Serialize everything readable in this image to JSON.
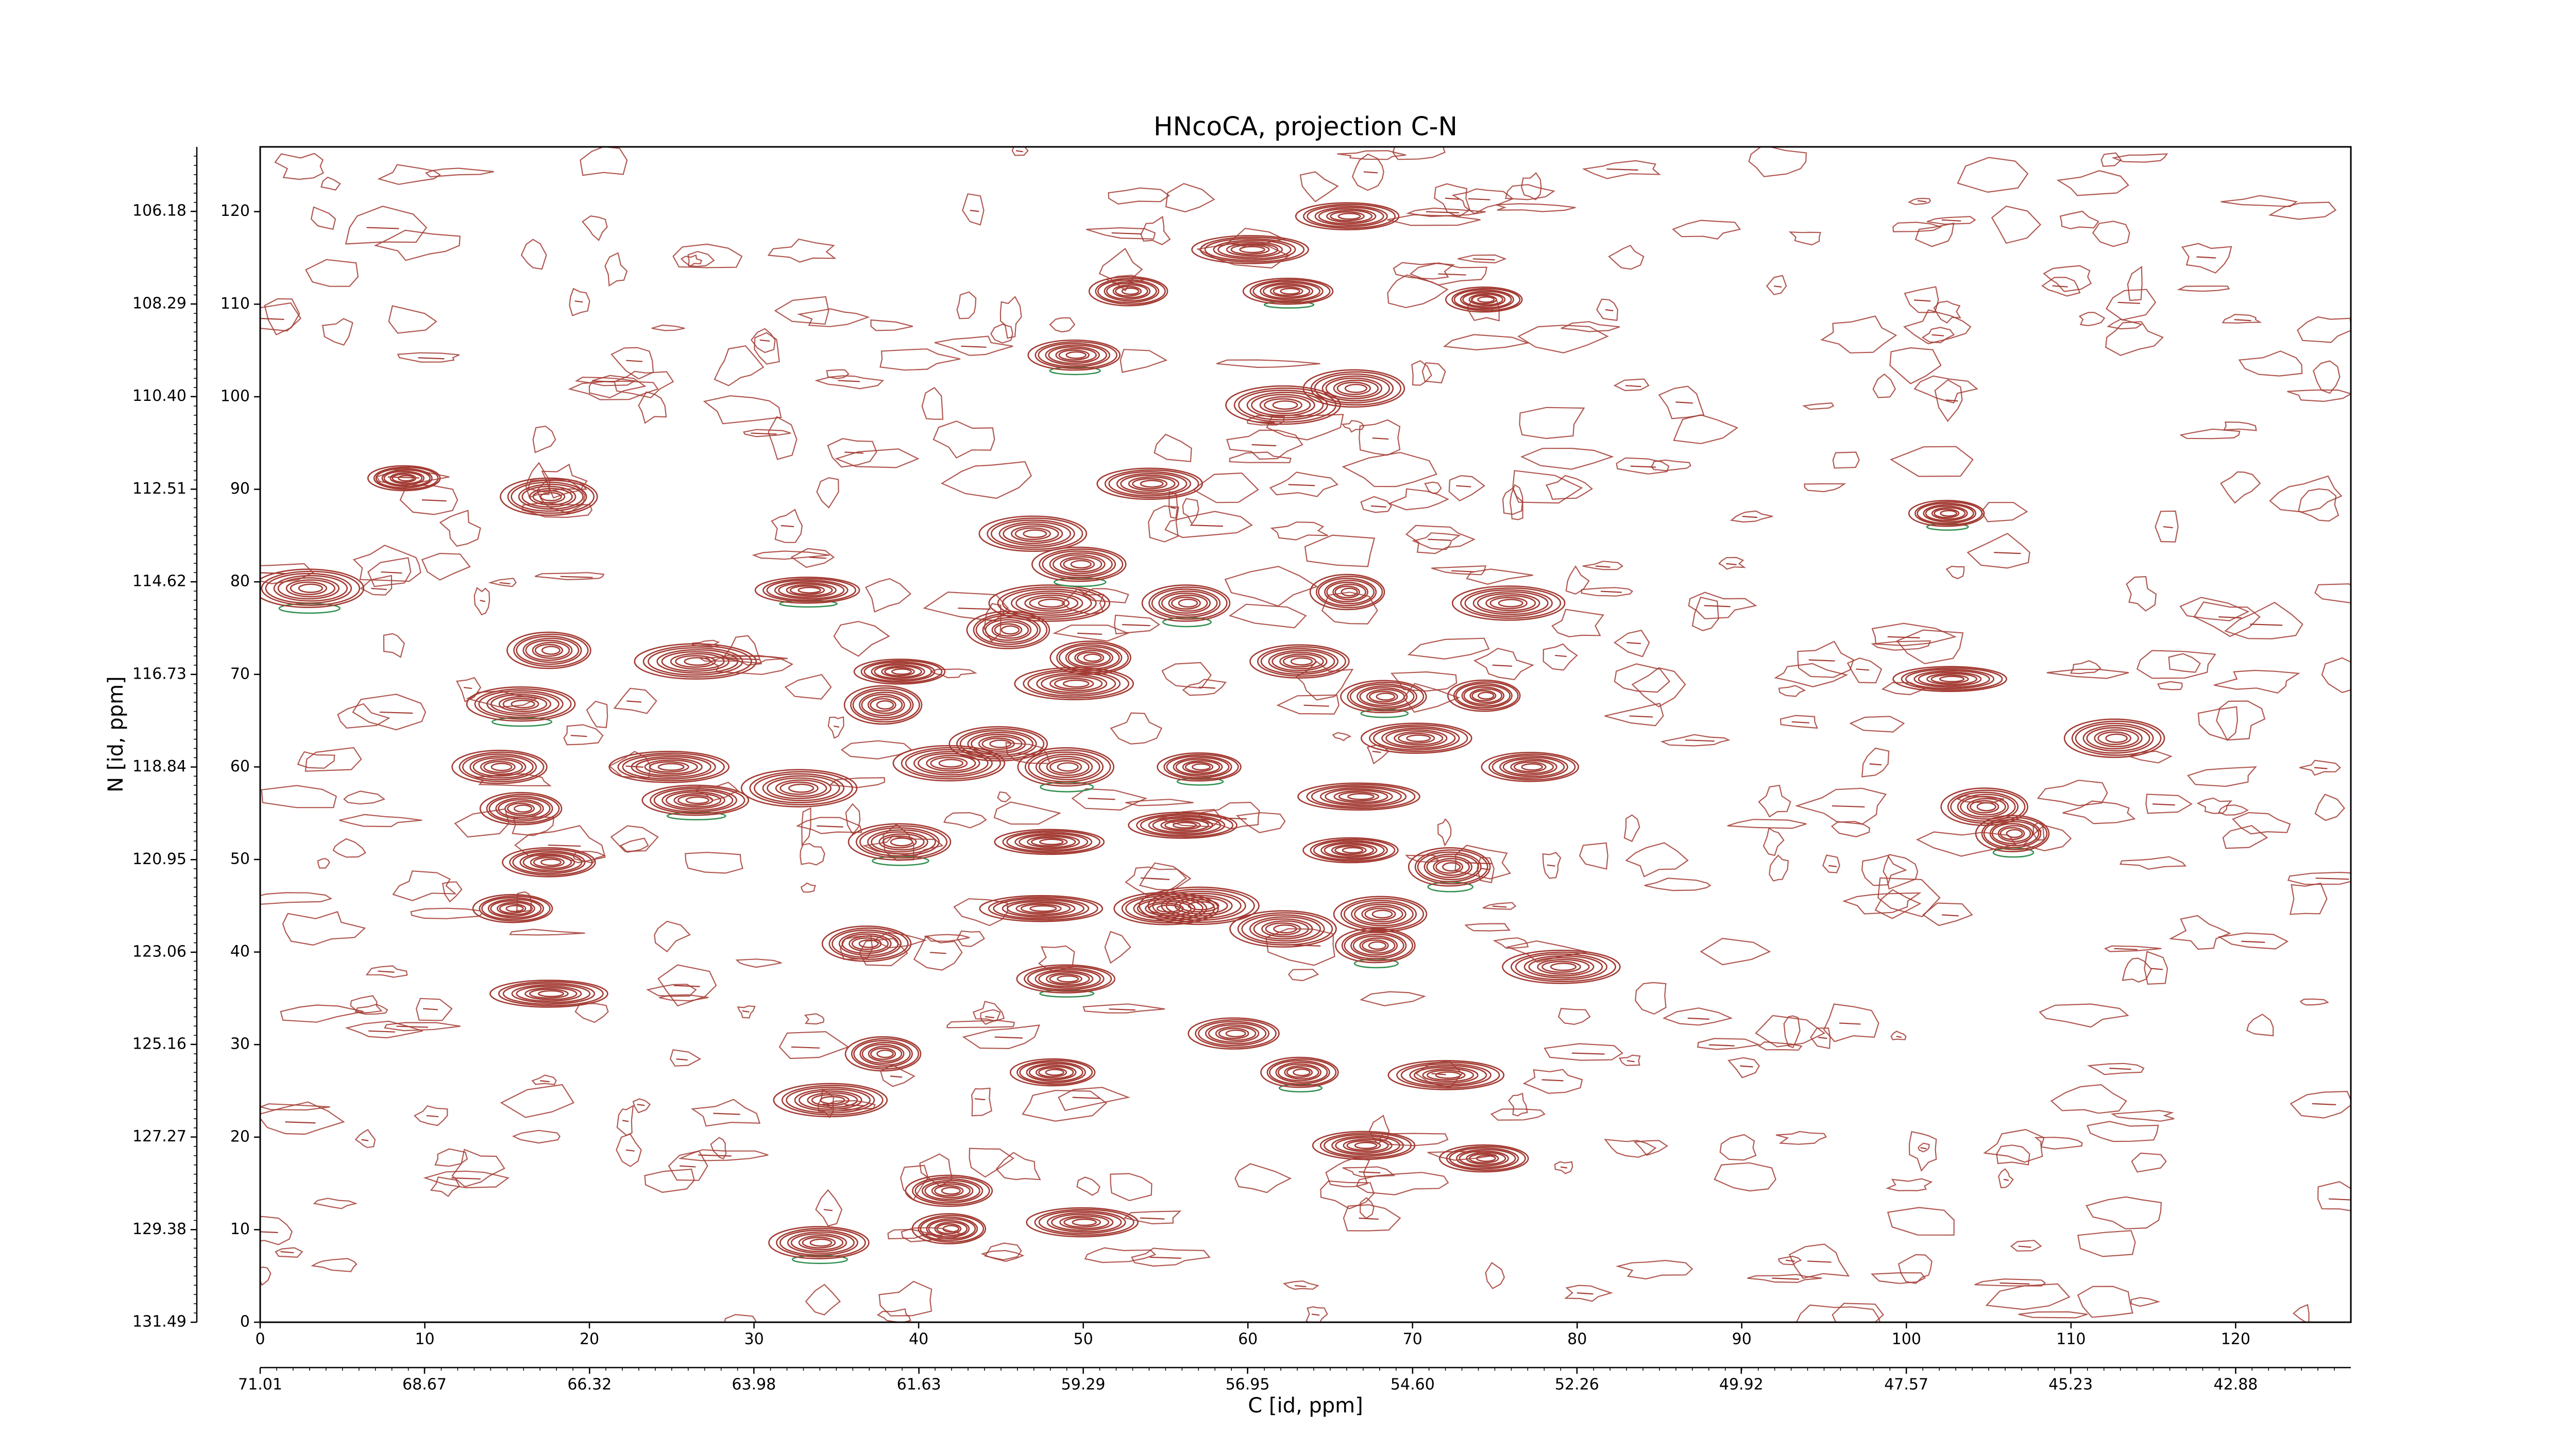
{
  "chart_data": {
    "type": "contour",
    "title": "HNcoCA, projection C-N",
    "xlabel": "C [id, ppm]",
    "ylabel": "N [id, ppm]",
    "color": "#a33b33",
    "negative_color": "#2f8f4e",
    "xlim": [
      0,
      127
    ],
    "xticks": [
      0,
      10,
      20,
      30,
      40,
      50,
      60,
      70,
      80,
      90,
      100,
      110,
      120
    ],
    "ylim": [
      0,
      127
    ],
    "yticks": [
      0,
      10,
      20,
      30,
      40,
      50,
      60,
      70,
      80,
      90,
      100,
      110,
      120
    ],
    "x2lim": [
      71.01,
      41.24
    ],
    "x2ticks": [
      71.01,
      68.67,
      66.32,
      63.98,
      61.63,
      59.29,
      56.95,
      {
        "value": 54.6,
        "label": "54.60"
      },
      52.26,
      49.92,
      47.57,
      45.23,
      42.88
    ],
    "y2lim": [
      131.49,
      104.71
    ],
    "y2ticks": [
      131.49,
      129.38,
      127.27,
      125.16,
      123.06,
      120.95,
      118.84,
      116.73,
      114.62,
      112.51,
      {
        "value": 110.4,
        "label": "110.40"
      },
      108.29,
      106.18
    ],
    "peaks": {
      "x": [
        8.8,
        3.0,
        17.6,
        17.6,
        26.5,
        15.9,
        14.6,
        15.9,
        24.9,
        26.5,
        17.6,
        15.4,
        17.6,
        33.3,
        38.9,
        37.9,
        32.8,
        38.9,
        36.9,
        37.9,
        34.7,
        34.0,
        41.9,
        41.9,
        50.0,
        49.0,
        48.2,
        47.5,
        48.0,
        49.0,
        45.5,
        48.0,
        47.0,
        49.8,
        50.5,
        49.5,
        54.1,
        49.5,
        52.8,
        60.2,
        66.1,
        62.5,
        74.4,
        62.2,
        66.5,
        56.3,
        66.1,
        75.9,
        63.2,
        68.3,
        74.4,
        70.3,
        77.2,
        57.1,
        66.8,
        56.1,
        66.3,
        72.3,
        57.1,
        62.2,
        68.1,
        67.8,
        79.1,
        55.1,
        59.2,
        63.2,
        72.1,
        67.1,
        74.4,
        102.5,
        102.7,
        112.7,
        104.8,
        106.5,
        41.9,
        44.9
      ],
      "y": [
        91.2,
        79.3,
        89.2,
        72.6,
        71.4,
        66.8,
        60.0,
        55.5,
        60.0,
        56.4,
        49.7,
        44.7,
        35.5,
        79.1,
        70.3,
        66.7,
        57.7,
        51.9,
        40.9,
        29.0,
        24.0,
        8.6,
        14.2,
        10.1,
        10.8,
        37.1,
        27.0,
        44.7,
        51.9,
        60.0,
        74.8,
        77.7,
        85.2,
        81.9,
        71.8,
        69.0,
        90.6,
        104.5,
        111.4,
        115.9,
        119.5,
        111.4,
        110.5,
        99.1,
        100.9,
        77.7,
        78.9,
        77.7,
        71.4,
        67.6,
        67.7,
        63.1,
        60.0,
        60.0,
        56.8,
        53.7,
        51.0,
        49.2,
        45.0,
        42.5,
        44.1,
        40.7,
        38.4,
        44.7,
        31.2,
        27.0,
        26.7,
        19.1,
        17.7,
        87.4,
        69.5,
        63.1,
        55.7,
        52.8,
        60.4,
        62.5
      ]
    }
  }
}
